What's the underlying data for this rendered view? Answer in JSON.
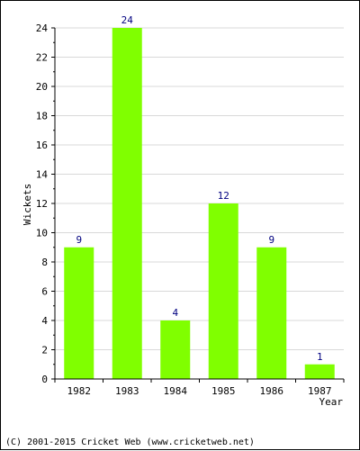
{
  "chart_data": {
    "type": "bar",
    "categories": [
      "1982",
      "1983",
      "1984",
      "1985",
      "1986",
      "1987"
    ],
    "values": [
      9,
      24,
      4,
      12,
      9,
      1
    ],
    "data_labels": [
      "9",
      "24",
      "4",
      "12",
      "9",
      "1"
    ],
    "title": "",
    "xlabel": "Year",
    "ylabel": "Wickets",
    "ylim": [
      0,
      24
    ],
    "yticks": [
      0,
      2,
      4,
      6,
      8,
      10,
      12,
      14,
      16,
      18,
      20,
      22,
      24
    ],
    "grid": true,
    "legend": "none"
  },
  "colors": {
    "bar": "#80ff00",
    "data_label": "#000080",
    "grid": "#d8d8d8",
    "axis": "#000000"
  },
  "footer": {
    "text": "(C) 2001-2015 Cricket Web (www.cricketweb.net)"
  }
}
